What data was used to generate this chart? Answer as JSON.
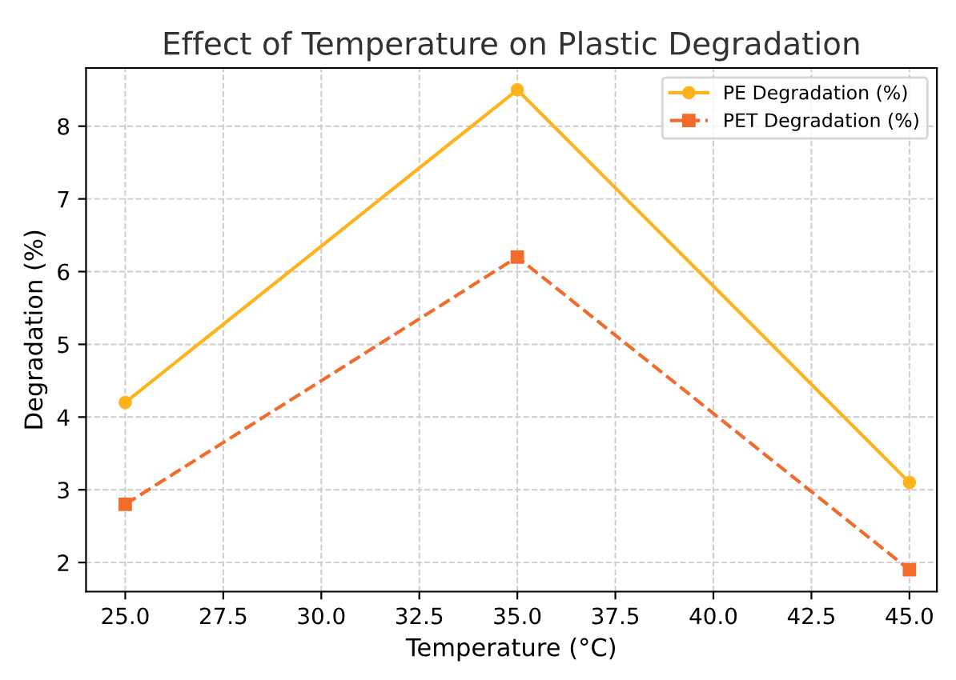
{
  "chart_data": {
    "type": "line",
    "title": "Effect of Temperature on Plastic Degradation",
    "xlabel": "Temperature (°C)",
    "ylabel": "Degradation (%)",
    "x": [
      25,
      35,
      45
    ],
    "series": [
      {
        "name": "PE Degradation (%)",
        "color": "#ffb31a",
        "values": [
          4.2,
          8.5,
          3.1
        ],
        "marker": "circle",
        "line_style": "solid"
      },
      {
        "name": "PET Degradation (%)",
        "color": "#f26b2a",
        "values": [
          2.8,
          6.2,
          1.9
        ],
        "marker": "square",
        "line_style": "dashed"
      }
    ],
    "xlim": [
      24.0,
      45.7
    ],
    "ylim": [
      1.6,
      8.8
    ],
    "xticks": [
      {
        "value": 25,
        "label": "25.0"
      },
      {
        "value": 27.5,
        "label": "27.5"
      },
      {
        "value": 30,
        "label": "30.0"
      },
      {
        "value": 32.5,
        "label": "32.5"
      },
      {
        "value": 35,
        "label": "35.0"
      },
      {
        "value": 37.5,
        "label": "37.5"
      },
      {
        "value": 40,
        "label": "40.0"
      },
      {
        "value": 42.5,
        "label": "42.5"
      },
      {
        "value": 45,
        "label": "45.0"
      }
    ],
    "yticks": [
      2,
      3,
      4,
      5,
      6,
      7,
      8
    ],
    "grid": true,
    "legend": "top right"
  }
}
